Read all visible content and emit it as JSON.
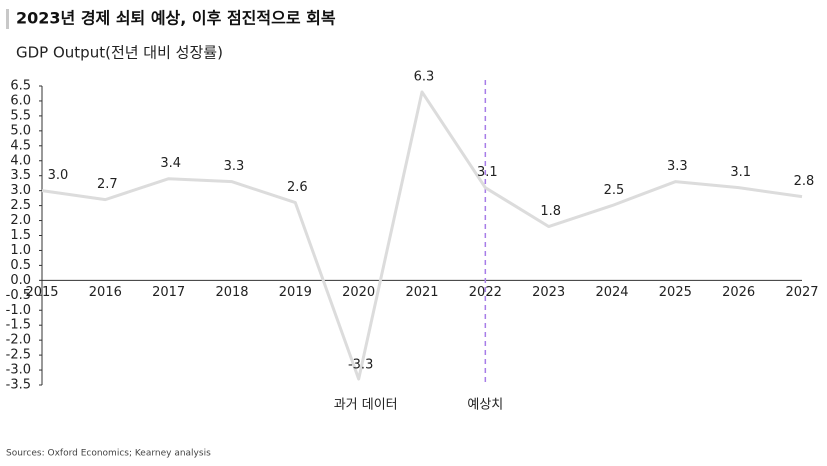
{
  "chart_data": {
    "type": "line",
    "title": "2023년 경제 쇠퇴 예상, 이후 점진적으로 회복",
    "subtitle": "GDP Output(전년 대비 성장률)",
    "source": "Sources: Oxford Economics; Kearney analysis",
    "categories": [
      "2015",
      "2016",
      "2017",
      "2018",
      "2019",
      "2020",
      "2021",
      "2022",
      "2023",
      "2024",
      "2025",
      "2026",
      "2027"
    ],
    "values": [
      3.0,
      2.7,
      3.4,
      3.3,
      2.6,
      -3.3,
      6.3,
      3.1,
      1.8,
      2.5,
      3.3,
      3.1,
      2.8
    ],
    "value_labels": [
      "3.0",
      "2.7",
      "3.4",
      "3.3",
      "2.6",
      "-3.3",
      "6.3",
      "3.1",
      "1.8",
      "2.5",
      "3.3",
      "3.1",
      "2.8"
    ],
    "color": "#dcdcdc",
    "ylim": [
      -3.5,
      6.5
    ],
    "yticks": [
      {
        "value": -3.5,
        "label": "-3.5"
      },
      {
        "value": -3,
        "label": "-3.0"
      },
      -2.5,
      {
        "value": -2,
        "label": "-2.0"
      },
      -1.5,
      {
        "value": -1,
        "label": "-1.0"
      },
      -0.5,
      {
        "value": 0,
        "label": "0.0"
      },
      0.5,
      {
        "value": 1,
        "label": "1.0"
      },
      1.5,
      {
        "value": 2,
        "label": "2.0"
      },
      2.5,
      {
        "value": 3,
        "label": "3.0"
      },
      3.5,
      {
        "value": 4,
        "label": "4.0"
      },
      4.5,
      {
        "value": 5,
        "label": "5.0"
      },
      5.5,
      {
        "value": 6,
        "label": "6.0"
      },
      6.5
    ],
    "divider": {
      "x": "2022",
      "color": "#a77de8"
    },
    "annotations": [
      "과거 데이터",
      "예상치"
    ]
  }
}
